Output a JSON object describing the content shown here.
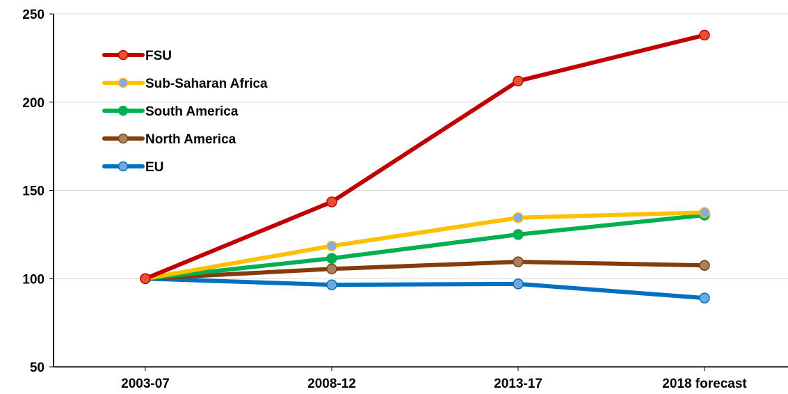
{
  "chart_data": {
    "type": "line",
    "title": "",
    "xlabel": "",
    "ylabel": "",
    "categories": [
      "2003-07",
      "2008-12",
      "2013-17",
      "2018 forecast"
    ],
    "ylim": [
      50,
      250
    ],
    "yticks": [
      50,
      100,
      150,
      200,
      250
    ],
    "grid": true,
    "legend_position": "top-left",
    "series": [
      {
        "name": "FSU",
        "values": [
          100,
          143.5,
          212,
          238
        ],
        "color": "#C00000",
        "marker_color": "#E8502F"
      },
      {
        "name": "Sub-Saharan Africa",
        "values": [
          100,
          118.5,
          134.5,
          137.5
        ],
        "color": "#FFC000",
        "marker_color": "#8EA9DB"
      },
      {
        "name": "South America",
        "values": [
          100,
          111.5,
          125,
          136
        ],
        "color": "#00B050",
        "marker_color": "#00B050"
      },
      {
        "name": "North America",
        "values": [
          100,
          105.5,
          109.5,
          107.5
        ],
        "color": "#843C0C",
        "marker_color": "#A5835F"
      },
      {
        "name": "EU",
        "values": [
          100,
          96.5,
          97,
          89
        ],
        "color": "#0070C0",
        "marker_color": "#6FA8DC"
      }
    ]
  }
}
